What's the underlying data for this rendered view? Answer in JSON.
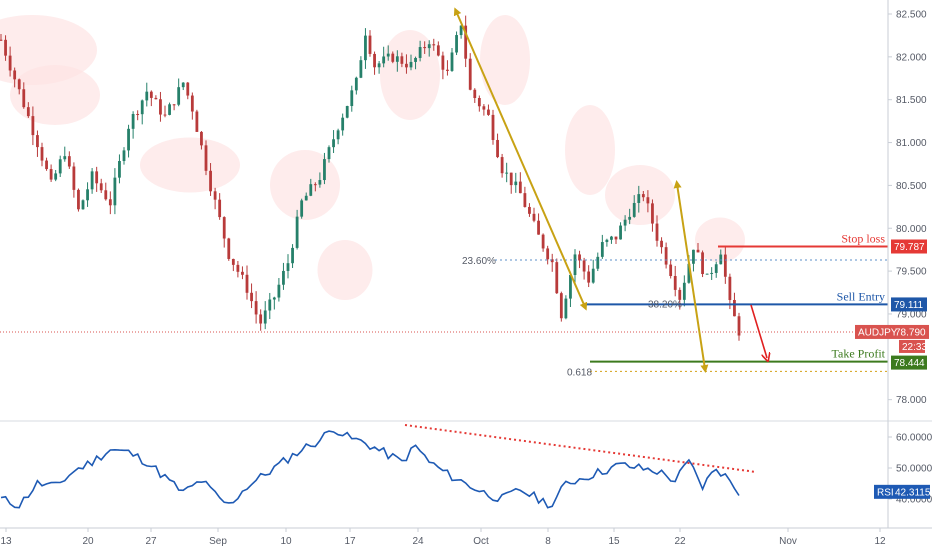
{
  "chart_data": {
    "type": "candlestick",
    "symbol": "AUDJPY",
    "price_axis": {
      "ticks": [
        "82.500",
        "82.000",
        "81.500",
        "81.000",
        "80.500",
        "80.000",
        "79.500",
        "79.000",
        "78.000"
      ],
      "tick_values": [
        82.5,
        82.0,
        81.5,
        81.0,
        80.5,
        80.0,
        79.5,
        79.0,
        78.0
      ],
      "range": [
        77.7,
        82.65
      ]
    },
    "time_axis": {
      "ticks": [
        "13",
        "20",
        "27",
        "Sep",
        "10",
        "17",
        "24",
        "Oct",
        "8",
        "15",
        "22",
        "Nov",
        "12"
      ]
    },
    "price_path": [
      [
        0,
        82.2
      ],
      [
        4,
        81.6
      ],
      [
        8,
        81.0
      ],
      [
        11,
        80.5
      ],
      [
        14,
        80.9
      ],
      [
        17,
        80.2
      ],
      [
        20,
        80.6
      ],
      [
        24,
        80.3
      ],
      [
        28,
        81.2
      ],
      [
        32,
        81.6
      ],
      [
        36,
        81.3
      ],
      [
        40,
        81.7
      ],
      [
        42,
        81.4
      ],
      [
        46,
        80.5
      ],
      [
        50,
        79.7
      ],
      [
        54,
        79.3
      ],
      [
        56,
        79.0
      ],
      [
        57,
        78.9
      ],
      [
        60,
        79.2
      ],
      [
        63,
        79.6
      ],
      [
        66,
        80.3
      ],
      [
        70,
        80.6
      ],
      [
        74,
        81.2
      ],
      [
        78,
        81.7
      ],
      [
        80,
        82.3
      ],
      [
        82,
        81.9
      ],
      [
        86,
        82.0
      ],
      [
        90,
        81.9
      ],
      [
        94,
        82.2
      ],
      [
        98,
        81.8
      ],
      [
        101,
        82.4
      ],
      [
        103,
        81.6
      ],
      [
        107,
        81.3
      ],
      [
        110,
        80.7
      ],
      [
        114,
        80.4
      ],
      [
        118,
        79.9
      ],
      [
        121,
        79.6
      ],
      [
        123,
        79.0
      ],
      [
        126,
        79.7
      ],
      [
        129,
        79.4
      ],
      [
        132,
        79.8
      ],
      [
        135,
        79.9
      ],
      [
        138,
        80.2
      ],
      [
        141,
        80.4
      ],
      [
        144,
        79.9
      ],
      [
        147,
        79.5
      ],
      [
        149,
        79.2
      ],
      [
        152,
        79.8
      ],
      [
        155,
        79.4
      ],
      [
        158,
        79.75
      ],
      [
        160,
        79.1
      ],
      [
        162,
        78.8
      ]
    ],
    "rsi": {
      "label": "RSI",
      "value": "42.3115",
      "ticks": [
        "60.0000",
        "50.0000",
        "40.0000"
      ],
      "tick_values": [
        60,
        50,
        40
      ],
      "path": [
        [
          0,
          40
        ],
        [
          4,
          38
        ],
        [
          8,
          45
        ],
        [
          12,
          44
        ],
        [
          16,
          49
        ],
        [
          20,
          52
        ],
        [
          24,
          56
        ],
        [
          28,
          55
        ],
        [
          32,
          52
        ],
        [
          36,
          47
        ],
        [
          40,
          42
        ],
        [
          44,
          46
        ],
        [
          48,
          40
        ],
        [
          50,
          38
        ],
        [
          54,
          44
        ],
        [
          58,
          48
        ],
        [
          62,
          52
        ],
        [
          66,
          56
        ],
        [
          70,
          59
        ],
        [
          73,
          63
        ],
        [
          76,
          60
        ],
        [
          80,
          58
        ],
        [
          84,
          55
        ],
        [
          88,
          52
        ],
        [
          91,
          57
        ],
        [
          94,
          52
        ],
        [
          98,
          48
        ],
        [
          102,
          45
        ],
        [
          106,
          42
        ],
        [
          110,
          40
        ],
        [
          114,
          43
        ],
        [
          118,
          40
        ],
        [
          121,
          38
        ],
        [
          124,
          45
        ],
        [
          128,
          47
        ],
        [
          132,
          49
        ],
        [
          136,
          51
        ],
        [
          140,
          50
        ],
        [
          144,
          49
        ],
        [
          148,
          46
        ],
        [
          151,
          52
        ],
        [
          154,
          44
        ],
        [
          157,
          50
        ],
        [
          160,
          46
        ],
        [
          162,
          42.3
        ]
      ]
    },
    "levels": {
      "stop_loss": {
        "label": "Stop loss",
        "value": "79.787",
        "price": 79.787,
        "color": "#e53935"
      },
      "sell_entry": {
        "label": "Sell Entry",
        "value": "79.111",
        "price": 79.111,
        "color": "#1e57a8"
      },
      "take_profit": {
        "label": "Take Profit",
        "value": "78.444",
        "price": 78.444,
        "color": "#3c7a1e"
      },
      "current": {
        "label": "AUDJPY",
        "value": "78.790",
        "price": 78.79,
        "countdown": "22:33",
        "color": "#d9534f"
      }
    },
    "fibonacci": {
      "fib_2360": {
        "label": "23.60%",
        "price": 79.63,
        "color": "#5b8fc9"
      },
      "fib_3820": {
        "label": "38.20%",
        "price": 79.111,
        "color": "#5b8fc9"
      },
      "fib_618": {
        "label": "0.618",
        "price": 78.33,
        "color": "#d4a017"
      }
    },
    "colors": {
      "up": "#26806a",
      "down": "#b83a3a",
      "cloud": "#fde4e4",
      "rsi_line": "#1e5ab4",
      "trend_arrow": "#c8a214",
      "trendline": "#e53935",
      "target_arrow": "#e02020"
    }
  }
}
